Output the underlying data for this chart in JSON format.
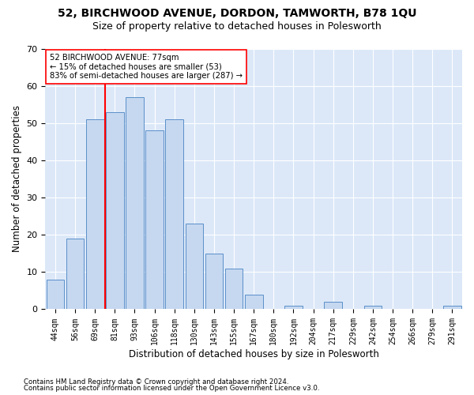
{
  "title1": "52, BIRCHWOOD AVENUE, DORDON, TAMWORTH, B78 1QU",
  "title2": "Size of property relative to detached houses in Polesworth",
  "xlabel": "Distribution of detached houses by size in Polesworth",
  "ylabel": "Number of detached properties",
  "bar_labels": [
    "44sqm",
    "56sqm",
    "69sqm",
    "81sqm",
    "93sqm",
    "106sqm",
    "118sqm",
    "130sqm",
    "143sqm",
    "155sqm",
    "167sqm",
    "180sqm",
    "192sqm",
    "204sqm",
    "217sqm",
    "229sqm",
    "242sqm",
    "254sqm",
    "266sqm",
    "279sqm",
    "291sqm"
  ],
  "bar_heights": [
    8,
    19,
    51,
    53,
    57,
    48,
    51,
    23,
    15,
    11,
    4,
    0,
    1,
    0,
    2,
    0,
    1,
    0,
    0,
    0,
    1
  ],
  "bar_color": "#c5d8f0",
  "bar_edge_color": "#5b8fc9",
  "red_line_x": 2,
  "annotation_text": "52 BIRCHWOOD AVENUE: 77sqm\n← 15% of detached houses are smaller (53)\n83% of semi-detached houses are larger (287) →",
  "annot_box_color": "white",
  "annot_box_edge": "red",
  "footer1": "Contains HM Land Registry data © Crown copyright and database right 2024.",
  "footer2": "Contains public sector information licensed under the Open Government Licence v3.0.",
  "ylim": [
    0,
    70
  ],
  "yticks": [
    0,
    10,
    20,
    30,
    40,
    50,
    60,
    70
  ],
  "bg_color": "#dce8f8",
  "title1_fontsize": 10,
  "title2_fontsize": 9,
  "xlabel_fontsize": 8.5,
  "ylabel_fontsize": 8.5
}
